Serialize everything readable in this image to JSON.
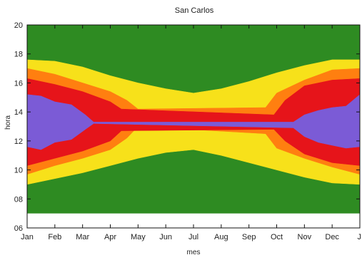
{
  "chart_data": {
    "type": "heatmap",
    "title": "San Carlos",
    "xlabel": "mes",
    "ylabel": "hora",
    "x_categories": [
      "Jan",
      "Feb",
      "Mar",
      "Apr",
      "May",
      "Jun",
      "Jul",
      "Aug",
      "Sep",
      "Oct",
      "Nov",
      "Dec",
      "J"
    ],
    "x_range": [
      0,
      12
    ],
    "ylim": [
      6,
      20
    ],
    "y_ticks": [
      "06",
      "08",
      "10",
      "12",
      "14",
      "16",
      "18",
      "20"
    ],
    "y_tick_values": [
      6,
      8,
      10,
      12,
      14,
      16,
      18,
      20
    ],
    "plot_region_hours": [
      7,
      20
    ],
    "grid": false,
    "legend": "none",
    "colors": {
      "background": "#2e8b22",
      "level1": "#f7e11a",
      "level2": "#ff7f10",
      "level3": "#e6141a",
      "level4": "#7b5bd6"
    },
    "bands": [
      {
        "name": "yellow",
        "color": "#f7e11a",
        "month": [
          0,
          1,
          2,
          3,
          4,
          5,
          6,
          7,
          8,
          9,
          10,
          11,
          12
        ],
        "start": [
          9.0,
          9.4,
          9.8,
          10.3,
          10.8,
          11.2,
          11.4,
          11.0,
          10.5,
          10.0,
          9.5,
          9.1,
          9.0
        ],
        "end": [
          17.6,
          17.5,
          17.1,
          16.5,
          16.0,
          15.6,
          15.3,
          15.6,
          16.1,
          16.7,
          17.2,
          17.6,
          17.6
        ]
      },
      {
        "name": "orange",
        "color": "#ff7f10",
        "month": [
          0,
          1,
          2,
          3,
          3.6,
          4,
          8.6,
          9,
          10,
          11,
          12
        ],
        "start": [
          9.7,
          10.3,
          10.8,
          11.4,
          12.2,
          13.0,
          12.5,
          11.5,
          10.8,
          10.2,
          9.7
        ],
        "end": [
          17.0,
          16.6,
          16.0,
          15.4,
          14.8,
          14.2,
          14.3,
          15.3,
          16.2,
          16.9,
          17.0
        ]
      },
      {
        "name": "red",
        "color": "#e6141a",
        "month": [
          0,
          1,
          2,
          3,
          3.4,
          8.9,
          9.3,
          10,
          11,
          12
        ],
        "start": [
          10.3,
          10.8,
          11.3,
          12.0,
          12.7,
          12.8,
          12.0,
          11.1,
          10.5,
          10.3
        ],
        "end": [
          16.3,
          15.9,
          15.4,
          14.7,
          14.2,
          13.8,
          14.8,
          15.8,
          16.2,
          16.3
        ]
      },
      {
        "name": "purple",
        "color": "#7b5bd6",
        "month": [
          0,
          0.5,
          1,
          1.6,
          2.1,
          2.4,
          9.6,
          10,
          10.5,
          11,
          11.5,
          12
        ],
        "start": [
          11.6,
          11.4,
          11.9,
          12.1,
          12.8,
          13.2,
          12.9,
          12.3,
          11.9,
          11.7,
          11.5,
          11.6
        ],
        "end": [
          15.2,
          15.1,
          14.7,
          14.5,
          13.8,
          13.3,
          13.3,
          13.8,
          14.1,
          14.3,
          14.4,
          15.2
        ]
      }
    ]
  }
}
